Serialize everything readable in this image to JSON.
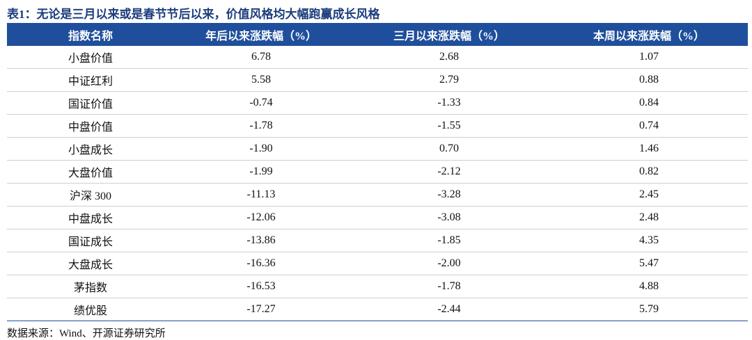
{
  "title": "表1：无论是三月以来或是春节节后以来，价值风格均大幅跑赢成长风格",
  "table": {
    "header": [
      "指数名称",
      "年后以来涨跌幅（%）",
      "三月以来涨跌幅（%）",
      "本周以来涨跌幅（%）"
    ],
    "rows": [
      [
        "小盘价值",
        "6.78",
        "2.68",
        "1.07"
      ],
      [
        "中证红利",
        "5.58",
        "2.79",
        "0.88"
      ],
      [
        "国证价值",
        "-0.74",
        "-1.33",
        "0.84"
      ],
      [
        "中盘价值",
        "-1.78",
        "-1.55",
        "0.74"
      ],
      [
        "小盘成长",
        "-1.90",
        "0.70",
        "1.46"
      ],
      [
        "大盘价值",
        "-1.99",
        "-2.12",
        "0.82"
      ],
      [
        "沪深 300",
        "-11.13",
        "-3.28",
        "2.45"
      ],
      [
        "中盘成长",
        "-12.06",
        "-3.08",
        "2.48"
      ],
      [
        "国证成长",
        "-13.86",
        "-1.85",
        "4.35"
      ],
      [
        "大盘成长",
        "-16.36",
        "-2.00",
        "5.47"
      ],
      [
        "茅指数",
        "-16.53",
        "-1.78",
        "4.88"
      ],
      [
        "绩优股",
        "-17.27",
        "-2.44",
        "5.79"
      ]
    ]
  },
  "source": "数据来源：Wind、开源证券研究所"
}
